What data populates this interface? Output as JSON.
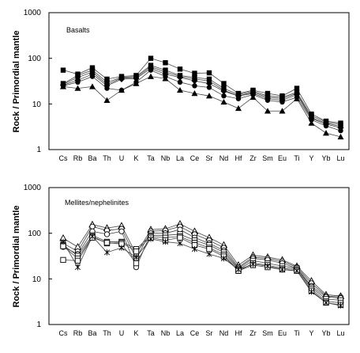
{
  "chart_data": [
    {
      "type": "line",
      "title": "Basalts",
      "ylabel": "Rock / Primordial mantle",
      "yscale": "log",
      "ylim": [
        1,
        1000
      ],
      "yticks": [
        "1",
        "10",
        "100",
        "1000"
      ],
      "grid": false,
      "categories": [
        "Cs",
        "Rb",
        "Ba",
        "Th",
        "U",
        "K",
        "Ta",
        "Nb",
        "La",
        "Ce",
        "Sr",
        "Nd",
        "Hf",
        "Zr",
        "Sm",
        "Eu",
        "Ti",
        "Y",
        "Yb",
        "Lu"
      ],
      "series": [
        {
          "marker": "square-filled",
          "values": [
            55,
            45,
            62,
            35,
            40,
            42,
            100,
            80,
            58,
            47,
            48,
            28,
            17,
            20,
            17,
            15,
            22,
            6,
            4.2,
            3.8
          ]
        },
        {
          "marker": "square-filled",
          "values": [
            28,
            42,
            55,
            30,
            38,
            40,
            70,
            55,
            42,
            38,
            35,
            22,
            16,
            19,
            15,
            14,
            18,
            5.5,
            4,
            3.5
          ]
        },
        {
          "marker": "circle-filled",
          "values": [
            27,
            38,
            50,
            27,
            37,
            38,
            65,
            50,
            40,
            35,
            32,
            20,
            15,
            18,
            14,
            13,
            17,
            5,
            3.8,
            3.2
          ]
        },
        {
          "marker": "diamond-filled",
          "values": [
            26,
            33,
            45,
            25,
            35,
            36,
            60,
            45,
            38,
            32,
            28,
            19,
            15,
            17,
            13,
            12,
            16,
            4.8,
            3.6,
            3
          ]
        },
        {
          "marker": "circle-filled",
          "values": [
            25,
            30,
            40,
            22,
            20,
            30,
            55,
            40,
            30,
            25,
            23,
            15,
            13,
            16,
            12,
            11,
            14,
            4.5,
            3.3,
            2.6
          ]
        },
        {
          "marker": "triangle-filled",
          "values": [
            24,
            22,
            24,
            12,
            20,
            28,
            40,
            36,
            20,
            17,
            15,
            11,
            8,
            14,
            7,
            7,
            13,
            3.8,
            2.3,
            1.9
          ]
        }
      ]
    },
    {
      "type": "line",
      "title": "Mellites/nephelinites",
      "ylabel": "Rock / Primordial mantle",
      "yscale": "log",
      "ylim": [
        1,
        1000
      ],
      "yticks": [
        "1",
        "10",
        "100",
        "1000"
      ],
      "grid": false,
      "categories": [
        "Cs",
        "Rb",
        "Ba",
        "Th",
        "U",
        "K",
        "Ta",
        "Nb",
        "La",
        "Ce",
        "Sr",
        "Nd",
        "Hf",
        "Zr",
        "Sm",
        "Eu",
        "Ti",
        "Y",
        "Yb",
        "Lu"
      ],
      "series": [
        {
          "marker": "triangle-open",
          "values": [
            78,
            50,
            155,
            130,
            145,
            35,
            120,
            125,
            160,
            110,
            80,
            55,
            20,
            33,
            30,
            26,
            19,
            9,
            4.5,
            4.2
          ]
        },
        {
          "marker": "circle-open",
          "values": [
            60,
            40,
            140,
            115,
            125,
            28,
            110,
            115,
            140,
            95,
            70,
            48,
            18,
            30,
            28,
            24,
            18,
            8,
            4.2,
            4
          ]
        },
        {
          "marker": "circle-open",
          "values": [
            50,
            35,
            110,
            95,
            110,
            18,
            100,
            100,
            120,
            80,
            60,
            42,
            17,
            28,
            26,
            22,
            17,
            7,
            4,
            3.8
          ]
        },
        {
          "marker": "square-open",
          "values": [
            55,
            32,
            90,
            65,
            65,
            45,
            90,
            90,
            95,
            70,
            55,
            38,
            16,
            25,
            22,
            19,
            17,
            6.5,
            3.6,
            3.4
          ]
        },
        {
          "marker": "square-open",
          "values": [
            52,
            28,
            85,
            60,
            62,
            40,
            85,
            80,
            85,
            62,
            48,
            34,
            15,
            22,
            20,
            17,
            16,
            6,
            3.2,
            3
          ]
        },
        {
          "marker": "square-open",
          "values": [
            26,
            25,
            80,
            62,
            58,
            22,
            80,
            70,
            80,
            55,
            45,
            31,
            15,
            20,
            18,
            16,
            15,
            5.5,
            3,
            2.7
          ]
        },
        {
          "marker": "x",
          "values": [
            65,
            18,
            85,
            38,
            48,
            30,
            75,
            65,
            60,
            45,
            35,
            28,
            16,
            21,
            19,
            16,
            15,
            5.2,
            3,
            2.6
          ]
        }
      ]
    }
  ]
}
